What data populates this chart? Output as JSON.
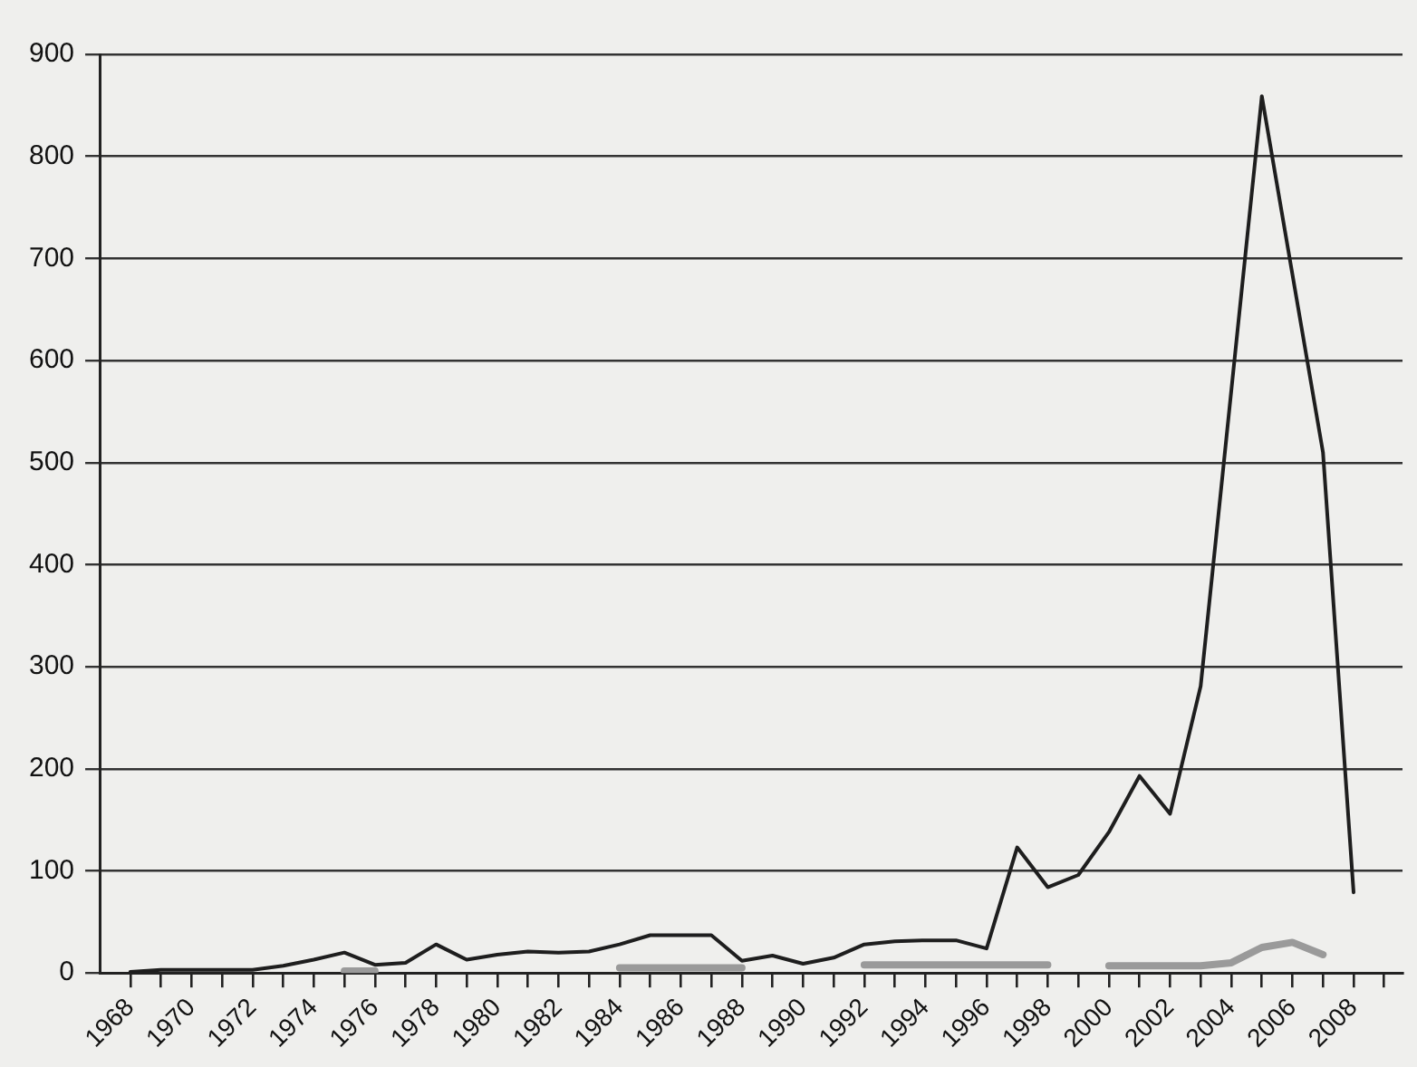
{
  "chart_data": {
    "type": "line",
    "series": [
      {
        "color": "#1e1e1e",
        "x": [
          1968,
          1969,
          1970,
          1971,
          1972,
          1973,
          1974,
          1975,
          1976,
          1977,
          1978,
          1979,
          1980,
          1981,
          1982,
          1983,
          1984,
          1985,
          1986,
          1987,
          1988,
          1989,
          1990,
          1991,
          1992,
          1993,
          1994,
          1995,
          1996,
          1997,
          1998,
          1999,
          2000,
          2001,
          2002,
          2003,
          2005,
          2007,
          2008
        ],
        "values": [
          1,
          3,
          3,
          3,
          3,
          7,
          13,
          20,
          8,
          10,
          28,
          13,
          18,
          21,
          20,
          21,
          28,
          37,
          37,
          37,
          12,
          17,
          9,
          15,
          28,
          31,
          32,
          32,
          24,
          123,
          84,
          96,
          138,
          193,
          156,
          281,
          859,
          510,
          79
        ]
      },
      {
        "color": "#9a9a9a",
        "x": [
          1975,
          1976,
          1977,
          1984,
          1985,
          1986,
          1987,
          1988,
          1989,
          1992,
          1993,
          1994,
          1995,
          1996,
          1997,
          1998,
          1999,
          2000,
          2001,
          2002,
          2003,
          2004,
          2005,
          2006,
          2007
        ],
        "values": [
          2,
          2,
          null,
          5,
          5,
          5,
          5,
          5,
          null,
          8,
          8,
          8,
          8,
          8,
          8,
          8,
          null,
          7,
          7,
          7,
          7,
          10,
          25,
          30,
          18
        ]
      }
    ],
    "xlim": [
      1967,
      2009.6
    ],
    "ylim": [
      0,
      900
    ],
    "xticks": [
      {
        "value": 1968,
        "label": "1968"
      },
      {
        "value": 1969,
        "label": null
      },
      {
        "value": 1970,
        "label": "1970"
      },
      {
        "value": 1971,
        "label": null
      },
      {
        "value": 1972,
        "label": "1972"
      },
      {
        "value": 1973,
        "label": null
      },
      {
        "value": 1974,
        "label": "1974"
      },
      {
        "value": 1975,
        "label": null
      },
      {
        "value": 1976,
        "label": "1976"
      },
      {
        "value": 1977,
        "label": null
      },
      {
        "value": 1978,
        "label": "1978"
      },
      {
        "value": 1979,
        "label": null
      },
      {
        "value": 1980,
        "label": "1980"
      },
      {
        "value": 1981,
        "label": null
      },
      {
        "value": 1982,
        "label": "1982"
      },
      {
        "value": 1983,
        "label": null
      },
      {
        "value": 1984,
        "label": "1984"
      },
      {
        "value": 1985,
        "label": null
      },
      {
        "value": 1986,
        "label": "1986"
      },
      {
        "value": 1987,
        "label": null
      },
      {
        "value": 1988,
        "label": "1988"
      },
      {
        "value": 1989,
        "label": null
      },
      {
        "value": 1990,
        "label": "1990"
      },
      {
        "value": 1991,
        "label": null
      },
      {
        "value": 1992,
        "label": "1992"
      },
      {
        "value": 1993,
        "label": null
      },
      {
        "value": 1994,
        "label": "1994"
      },
      {
        "value": 1995,
        "label": null
      },
      {
        "value": 1996,
        "label": "1996"
      },
      {
        "value": 1997,
        "label": null
      },
      {
        "value": 1998,
        "label": "1998"
      },
      {
        "value": 1999,
        "label": null
      },
      {
        "value": 2000,
        "label": "2000"
      },
      {
        "value": 2001,
        "label": null
      },
      {
        "value": 2002,
        "label": "2002"
      },
      {
        "value": 2003,
        "label": null
      },
      {
        "value": 2004,
        "label": "2004"
      },
      {
        "value": 2005,
        "label": null
      },
      {
        "value": 2006,
        "label": "2006"
      },
      {
        "value": 2007,
        "label": null
      },
      {
        "value": 2008,
        "label": "2008"
      },
      {
        "value": 2009,
        "label": null
      }
    ],
    "yticks": [
      0,
      100,
      200,
      300,
      400,
      500,
      600,
      700,
      800,
      900
    ],
    "grid": "y",
    "legend": false,
    "marker": "none",
    "line_style": "solid"
  }
}
